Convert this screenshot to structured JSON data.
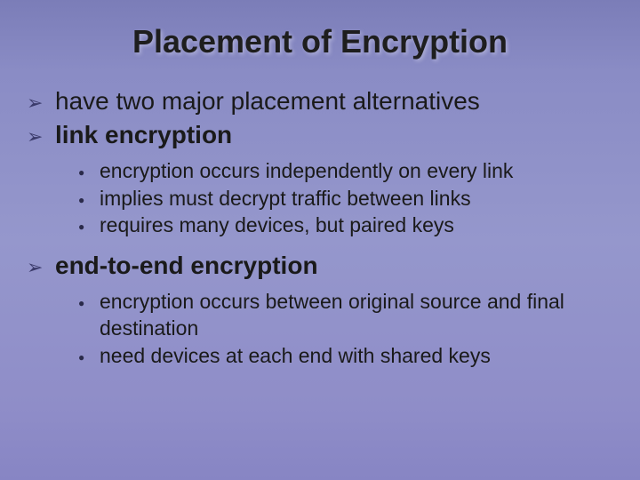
{
  "slide": {
    "title": "Placement of Encryption",
    "bullets": [
      {
        "markerGlyph": "➢",
        "text": "have two major placement alternatives",
        "bold": false
      },
      {
        "markerGlyph": "➢",
        "text": "link encryption",
        "bold": true,
        "sub": [
          {
            "dot": "●",
            "text": "encryption occurs independently on every link"
          },
          {
            "dot": "●",
            "text": "implies must decrypt traffic between links"
          },
          {
            "dot": "●",
            "text": "requires many devices, but paired keys"
          }
        ]
      },
      {
        "markerGlyph": "➢",
        "text": "end-to-end encryption",
        "bold": true,
        "sub": [
          {
            "dot": "●",
            "text": "encryption occurs between original source and final destination"
          },
          {
            "dot": "●",
            "text": "need devices at each end with shared keys"
          }
        ]
      }
    ],
    "style": {
      "bg_gradient": [
        "#7b7db8",
        "#8a8cc5",
        "#9597cc",
        "#8f8dc8",
        "#8785c4"
      ],
      "title_color": "#1e1e1e",
      "text_color": "#1a1a1a",
      "arrow_color": "#3a3a6a",
      "dot_color": "#2a2a4a",
      "title_fontsize": 36,
      "l1_fontsize": 28,
      "l2_fontsize": 23,
      "font_family": "Arial"
    }
  }
}
